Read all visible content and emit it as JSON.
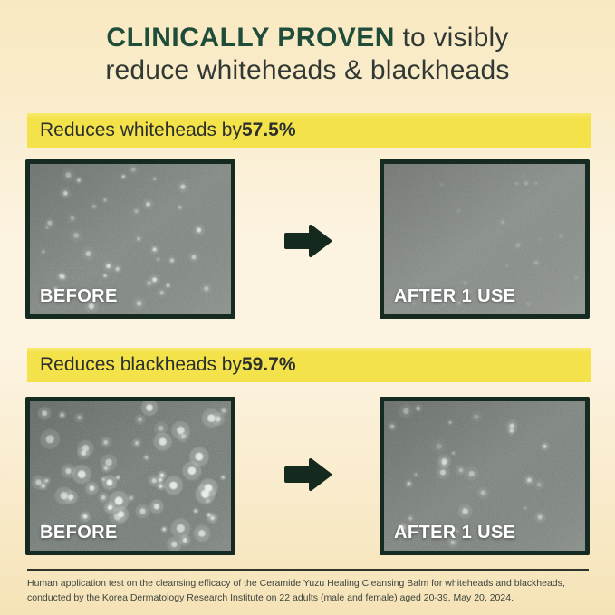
{
  "title": {
    "highlight": "CLINICALLY PROVEN",
    "rest": " to visibly",
    "line2": "reduce whiteheads & blackheads"
  },
  "sections": [
    {
      "banner": {
        "prefix": "Reduces whiteheads by ",
        "value": "57.5%"
      },
      "before_label": "BEFORE",
      "after_label": "AFTER 1 USE"
    },
    {
      "banner": {
        "prefix": "Reduces blackheads by ",
        "value": "59.7%"
      },
      "before_label": "BEFORE",
      "after_label": "AFTER 1 USE"
    }
  ],
  "footer": {
    "line1": "Human application test on the cleansing efficacy of the Ceramide Yuzu Healing Cleansing Balm for whiteheads and blackheads,",
    "line2": "conducted by the Korea Dermatology Research Institute on 22 adults (male and female) aged 20-39, May 20, 2024."
  },
  "icons": {
    "arrow": "right-arrow"
  },
  "colors": {
    "background_cream": "#f8e8c0",
    "background_light": "#fcf3e0",
    "banner_yellow": "#f4e24b",
    "title_green": "#1f4d3a",
    "text_dark": "#323833",
    "frame_dark_green": "#152a20",
    "arrow_dark_green": "#142a1e",
    "label_white": "#ffffff",
    "footnote_gray": "#3c443d"
  },
  "photos": [
    {
      "name": "whiteheads-before",
      "base": "#7f8681",
      "noise": 0.33,
      "seed": 101,
      "count": 38,
      "rmin": 1.3,
      "rmax": 3.2,
      "omin": 0.35,
      "omax": 0.85,
      "halo": 0.16
    },
    {
      "name": "whiteheads-after",
      "base": "#878d88",
      "noise": 0.3,
      "seed": 202,
      "count": 22,
      "rmin": 1.0,
      "rmax": 2.3,
      "omin": 0.1,
      "omax": 0.32,
      "halo": 0.1
    },
    {
      "name": "blackheads-before",
      "base": "#737b76",
      "noise": 0.34,
      "seed": 303,
      "count": 60,
      "rmin": 1.3,
      "rmax": 4.6,
      "omin": 0.45,
      "omax": 1.0,
      "halo": 0.3
    },
    {
      "name": "blackheads-after",
      "base": "#7b827d",
      "noise": 0.32,
      "seed": 404,
      "count": 27,
      "rmin": 1.1,
      "rmax": 3.4,
      "omin": 0.28,
      "omax": 0.8,
      "halo": 0.22
    }
  ]
}
